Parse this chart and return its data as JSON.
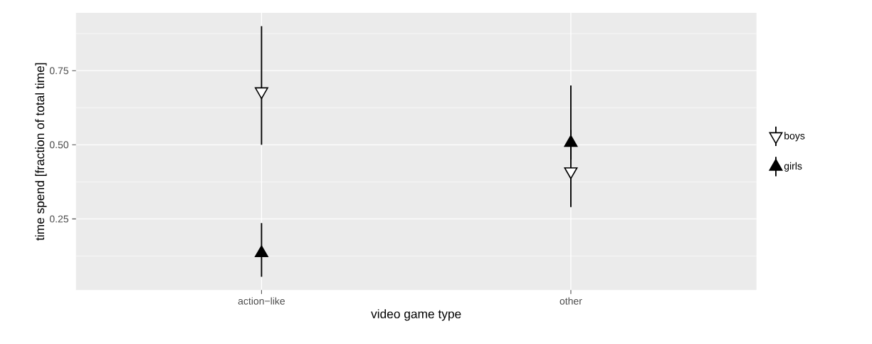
{
  "chart_data": {
    "type": "scatter",
    "xlabel": "video game type",
    "ylabel": "time spend [fraction of total time]",
    "categories": [
      "action−like",
      "other"
    ],
    "ylim": [
      0.01,
      0.945
    ],
    "yticks": [
      {
        "value": 0.25,
        "label": "0.25"
      },
      {
        "value": 0.5,
        "label": "0.50"
      },
      {
        "value": 0.75,
        "label": "0.75"
      }
    ],
    "grid": true,
    "legend": "right",
    "series": [
      {
        "name": "boys",
        "color": "#000000",
        "marker": "triangle-down-open",
        "values": [
          0.68,
          0.41
        ],
        "errors": [
          [
            0.5,
            0.9
          ],
          [
            0.29,
            0.55
          ]
        ]
      },
      {
        "name": "girls",
        "color": "#000000",
        "marker": "triangle",
        "values": [
          0.135,
          0.507
        ],
        "errors": [
          [
            0.055,
            0.236
          ],
          [
            0.45,
            0.7
          ]
        ]
      }
    ]
  }
}
